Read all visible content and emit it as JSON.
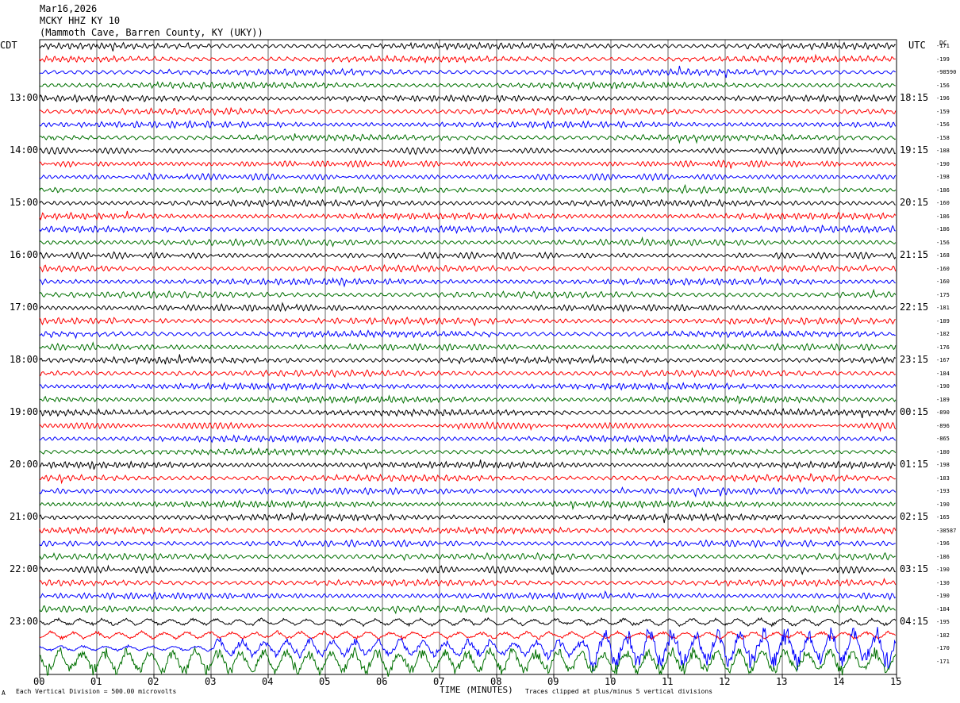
{
  "header": {
    "date": "Mar16,2026",
    "station": "MCKY HHZ KY 10",
    "location": "(Mammoth Cave, Barren County, KY (UKY))"
  },
  "left_zone_label": "CDT",
  "right_zone_label": "UTC",
  "dc_label": "DC",
  "footer": {
    "scale_note": "Each Vertical Division =  500.00 microvolts",
    "x_axis_title": "TIME (MINUTES)",
    "clip_note": "Traces clipped at plus/minus 5 vertical divisions",
    "corner_mark": "A"
  },
  "chart_data": {
    "type": "line",
    "title": "Mar16,2026 MCKY HHZ KY 10",
    "xlabel": "TIME (MINUTES)",
    "xlim": [
      0,
      15
    ],
    "x_ticks": [
      "00",
      "01",
      "02",
      "03",
      "04",
      "05",
      "06",
      "07",
      "08",
      "09",
      "10",
      "11",
      "12",
      "13",
      "14",
      "15"
    ],
    "left_hour_labels": [
      "13:00",
      "14:00",
      "15:00",
      "16:00",
      "17:00",
      "18:00",
      "19:00",
      "20:00",
      "21:00",
      "22:00",
      "23:00"
    ],
    "right_hour_labels": [
      "18:15",
      "19:15",
      "20:15",
      "21:15",
      "22:15",
      "23:15",
      "00:15",
      "01:15",
      "02:15",
      "03:15",
      "04:15"
    ],
    "trace_colors": [
      "#000000",
      "#ff0000",
      "#0000ff",
      "#007000"
    ],
    "trace_count": 48,
    "dc_offsets": [
      "-171",
      "-199",
      "-98590",
      "-156",
      "-196",
      "-159",
      "-156",
      "-158",
      "-188",
      "-190",
      "-198",
      "-186",
      "-160",
      "-186",
      "-186",
      "-156",
      "-168",
      "-160",
      "-160",
      "-175",
      "-181",
      "-189",
      "-182",
      "-176",
      "-167",
      "-184",
      "-190",
      "-189",
      "-890",
      "-896",
      "-865",
      "-180",
      "-198",
      "-183",
      "-193",
      "-190",
      "-165",
      "-38587",
      "-196",
      "-186",
      "-190",
      "-130",
      "-190",
      "-184",
      "-195",
      "-182",
      "-170",
      "-171"
    ],
    "clipped_traces_note": "Traces clipped at plus/minus 5 vertical divisions",
    "scale_microvolts_per_division": 500.0
  }
}
